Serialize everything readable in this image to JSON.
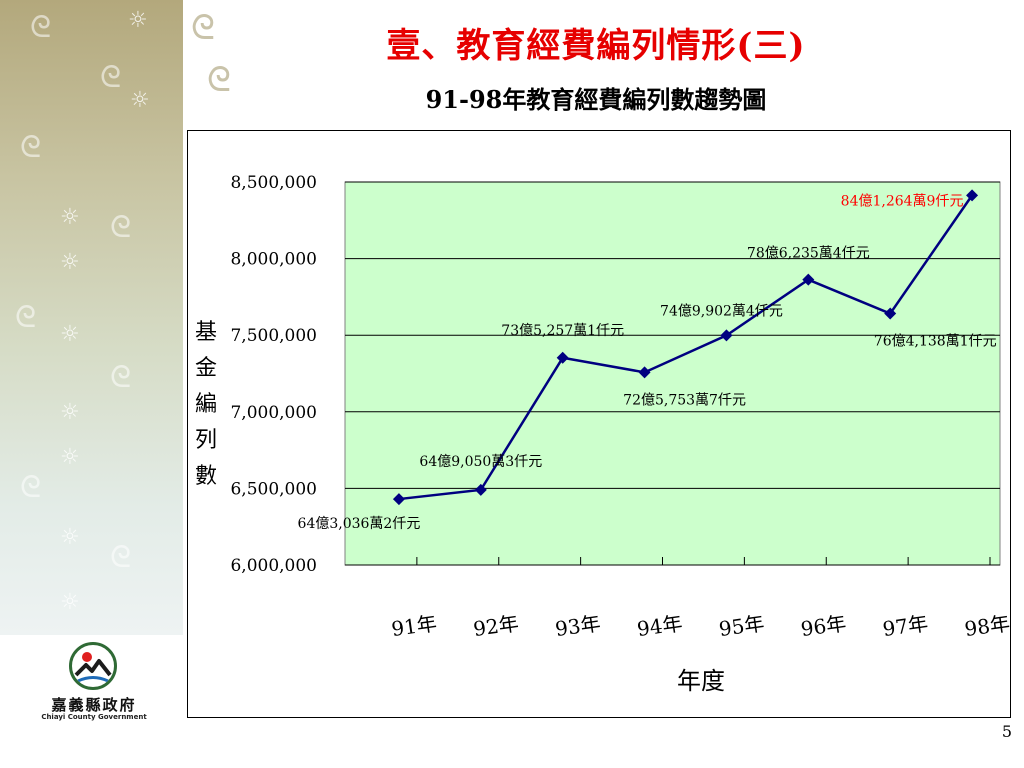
{
  "slide": {
    "title": "壹、教育經費編列情形(三)",
    "page_number": "5"
  },
  "logo": {
    "name": "嘉義縣政府",
    "subtitle": "Chiayi County Government"
  },
  "colors": {
    "title": "#e60000",
    "plot_background": "#ccffcc",
    "series_line": "#000080",
    "highlight_label": "#ff0000"
  },
  "chart_data": {
    "type": "line",
    "title": "91-98年教育經費編列數趨勢圖",
    "xlabel": "年度",
    "ylabel": "基金編列數",
    "categories": [
      "91年",
      "92年",
      "93年",
      "94年",
      "95年",
      "96年",
      "97年",
      "98年"
    ],
    "series": [
      {
        "values": [
          6430362,
          6490503,
          7352571,
          7257537,
          7499024,
          7862354,
          7641381,
          8412649
        ],
        "labels": [
          "64億3,036萬2仟元",
          "64億9,050萬3仟元",
          "73億5,257萬1仟元",
          "72億5,753萬7仟元",
          "74億9,902萬4仟元",
          "78億6,235萬4仟元",
          "76億4,138萬1仟元",
          "84億1,264萬9仟元"
        ]
      }
    ],
    "ylim": [
      6000000,
      8500000
    ],
    "yticks": [
      "6,000,000",
      "6,500,000",
      "7,000,000",
      "7,500,000",
      "8,000,000",
      "8,500,000"
    ],
    "grid": true,
    "legend": "none"
  }
}
